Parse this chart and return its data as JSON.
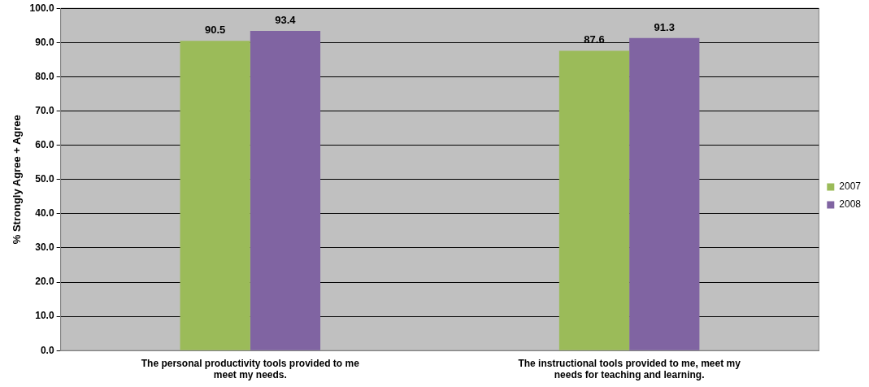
{
  "chart_data": {
    "type": "bar",
    "ylabel": "% Strongly Agree + Agree",
    "categories": [
      "The personal productivity tools provided to me meet my needs.",
      "The instructional tools provided to me, meet my needs for teaching and learning."
    ],
    "series": [
      {
        "name": "2007",
        "color": "#9bbb59",
        "values": [
          90.5,
          87.6
        ]
      },
      {
        "name": "2008",
        "color": "#8064a2",
        "values": [
          93.4,
          91.3
        ]
      }
    ],
    "ylim": [
      0,
      100
    ],
    "yticks": [
      {
        "value": 0,
        "label": "0.0"
      },
      {
        "value": 10,
        "label": "10.0"
      },
      {
        "value": 20,
        "label": "20.0"
      },
      {
        "value": 30,
        "label": "30.0"
      },
      {
        "value": 40,
        "label": "40.0"
      },
      {
        "value": 50,
        "label": "50.0"
      },
      {
        "value": 60,
        "label": "60.0"
      },
      {
        "value": 70,
        "label": "70.0"
      },
      {
        "value": 80,
        "label": "80.0"
      },
      {
        "value": 90,
        "label": "90.0"
      },
      {
        "value": 100,
        "label": "100.0"
      }
    ],
    "grid": "y",
    "legend": "right",
    "data_labels": true
  }
}
